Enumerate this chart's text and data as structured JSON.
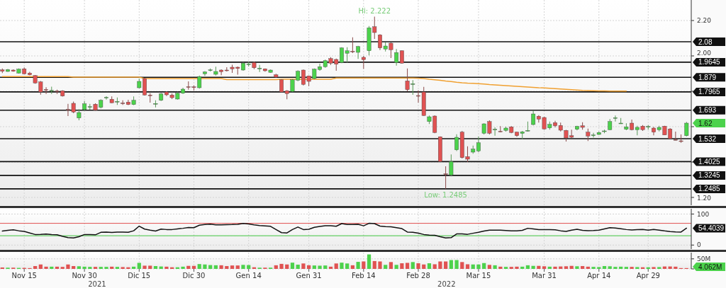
{
  "chart_data": [
    {
      "type": "candlestick",
      "categories": [
        null,
        null,
        null,
        null,
        null,
        null,
        null,
        null,
        null,
        null,
        null,
        null,
        null,
        null,
        null,
        null,
        null,
        null,
        null,
        null,
        null,
        null,
        null,
        null,
        null,
        null,
        null,
        null,
        null,
        null,
        null,
        null,
        null,
        null,
        null,
        null,
        null,
        null,
        null,
        null,
        null,
        null,
        null,
        null,
        null,
        null,
        null,
        null,
        null,
        null,
        null,
        null,
        null,
        null,
        null,
        null,
        null,
        null,
        null,
        null,
        null,
        null,
        null,
        null,
        null,
        null,
        null,
        null,
        null,
        null,
        null,
        null,
        null,
        null,
        null,
        null,
        null,
        null,
        null,
        null,
        null,
        null,
        null,
        null,
        null,
        null,
        null,
        null,
        null,
        null,
        null,
        null,
        null,
        null,
        null,
        null,
        null,
        null,
        null,
        null,
        null,
        null,
        null,
        null,
        null,
        null,
        null,
        null,
        null,
        null,
        null,
        null,
        null,
        null,
        null,
        null,
        null,
        null,
        null,
        null,
        null,
        null,
        null,
        null,
        null,
        null
      ],
      "ohlc": [
        [
          1.921,
          1.929,
          1.903,
          1.913
        ],
        [
          1.912,
          1.926,
          1.91,
          1.923
        ],
        [
          1.92,
          1.924,
          1.911,
          1.913
        ],
        [
          1.903,
          1.929,
          1.9,
          1.925
        ],
        [
          1.927,
          1.935,
          1.896,
          1.899
        ],
        [
          1.903,
          1.91,
          1.89,
          1.893
        ],
        [
          1.889,
          1.892,
          1.843,
          1.847
        ],
        [
          1.853,
          1.858,
          1.781,
          1.796
        ],
        [
          1.81,
          1.823,
          1.785,
          1.808
        ],
        [
          1.803,
          1.826,
          1.785,
          1.805
        ],
        [
          1.802,
          1.809,
          1.785,
          1.8
        ],
        [
          1.803,
          1.806,
          1.77,
          1.773
        ],
        [
          1.698,
          1.729,
          1.66,
          1.696
        ],
        [
          1.732,
          1.742,
          1.676,
          1.683
        ],
        [
          1.649,
          1.699,
          1.636,
          1.68
        ],
        [
          1.696,
          1.745,
          1.69,
          1.729
        ],
        [
          1.711,
          1.729,
          1.696,
          1.713
        ],
        [
          1.727,
          1.732,
          1.69,
          1.693
        ],
        [
          1.709,
          1.755,
          1.703,
          1.749
        ],
        [
          1.764,
          1.772,
          1.753,
          1.766
        ],
        [
          1.755,
          1.771,
          1.733,
          1.735
        ],
        [
          1.741,
          1.765,
          1.723,
          1.743
        ],
        [
          1.734,
          1.749,
          1.723,
          1.732
        ],
        [
          1.739,
          1.752,
          1.722,
          1.725
        ],
        [
          1.725,
          1.771,
          1.722,
          1.749
        ],
        [
          1.82,
          1.872,
          1.816,
          1.856
        ],
        [
          1.872,
          1.876,
          1.776,
          1.779
        ],
        [
          1.779,
          1.789,
          1.736,
          1.778
        ],
        [
          1.729,
          1.749,
          1.709,
          1.731
        ],
        [
          1.749,
          1.791,
          1.745,
          1.785
        ],
        [
          1.796,
          1.8,
          1.773,
          1.78
        ],
        [
          1.779,
          1.788,
          1.756,
          1.764
        ],
        [
          1.756,
          1.797,
          1.753,
          1.789
        ],
        [
          1.789,
          1.82,
          1.785,
          1.812
        ],
        [
          1.826,
          1.856,
          1.809,
          1.824
        ],
        [
          1.825,
          1.833,
          1.805,
          1.824
        ],
        [
          1.82,
          1.889,
          1.815,
          1.883
        ],
        [
          1.899,
          1.914,
          1.887,
          1.909
        ],
        [
          1.919,
          1.929,
          1.912,
          1.921
        ],
        [
          1.896,
          1.939,
          1.889,
          1.912
        ],
        [
          1.92,
          1.924,
          1.891,
          1.911
        ],
        [
          1.92,
          1.936,
          1.912,
          1.919
        ],
        [
          1.936,
          1.95,
          1.904,
          1.927
        ],
        [
          1.936,
          1.94,
          1.894,
          1.929
        ],
        [
          1.92,
          1.965,
          1.916,
          1.959
        ],
        [
          1.953,
          1.967,
          1.94,
          1.955
        ],
        [
          1.963,
          1.968,
          1.925,
          1.933
        ],
        [
          1.929,
          1.949,
          1.909,
          1.931
        ],
        [
          1.927,
          1.929,
          1.911,
          1.916
        ],
        [
          1.907,
          1.923,
          1.905,
          1.92
        ],
        [
          1.893,
          1.899,
          1.876,
          1.88
        ],
        [
          1.865,
          1.867,
          1.792,
          1.796
        ],
        [
          1.803,
          1.807,
          1.755,
          1.787
        ],
        [
          1.799,
          1.869,
          1.796,
          1.865
        ],
        [
          1.863,
          1.919,
          1.857,
          1.913
        ],
        [
          1.92,
          1.923,
          1.833,
          1.839
        ],
        [
          1.887,
          1.889,
          1.829,
          1.856
        ],
        [
          1.872,
          1.929,
          1.868,
          1.925
        ],
        [
          1.923,
          1.956,
          1.916,
          1.939
        ],
        [
          1.939,
          1.979,
          1.933,
          1.973
        ],
        [
          1.985,
          1.993,
          1.949,
          1.959
        ],
        [
          1.98,
          1.985,
          1.916,
          1.953
        ],
        [
          1.963,
          2.049,
          1.959,
          2.045
        ],
        [
          2.015,
          2.049,
          1.963,
          2.029
        ],
        [
          2.027,
          2.105,
          2.016,
          2.026
        ],
        [
          2.02,
          2.057,
          1.983,
          2.053
        ],
        [
          1.992,
          2.0,
          1.927,
          1.979
        ],
        [
          2.029,
          2.169,
          2.003,
          2.159
        ],
        [
          2.165,
          2.222,
          2.096,
          2.132
        ],
        [
          2.119,
          2.123,
          2.033,
          2.045
        ],
        [
          2.039,
          2.076,
          2.025,
          2.056
        ],
        [
          2.072,
          2.076,
          1.988,
          2.035
        ],
        [
          1.963,
          2.039,
          1.945,
          2.019
        ],
        [
          2.029,
          2.032,
          1.956,
          1.959
        ],
        [
          1.859,
          1.929,
          1.799,
          1.809
        ],
        [
          1.841,
          1.863,
          1.78,
          1.843
        ],
        [
          1.776,
          1.805,
          1.736,
          1.775
        ],
        [
          1.796,
          1.825,
          1.661,
          1.663
        ],
        [
          1.629,
          1.663,
          1.615,
          1.656
        ],
        [
          1.66,
          1.664,
          1.563,
          1.567
        ],
        [
          1.543,
          1.545,
          1.4,
          1.403
        ],
        [
          1.334,
          1.376,
          1.2485,
          1.333
        ],
        [
          1.327,
          1.443,
          1.319,
          1.403
        ],
        [
          1.469,
          1.557,
          1.462,
          1.54
        ],
        [
          1.569,
          1.576,
          1.42,
          1.425
        ],
        [
          1.431,
          1.489,
          1.4,
          1.416
        ],
        [
          1.456,
          1.493,
          1.447,
          1.473
        ],
        [
          1.463,
          1.544,
          1.455,
          1.509
        ],
        [
          1.563,
          1.619,
          1.556,
          1.616
        ],
        [
          1.629,
          1.636,
          1.556,
          1.563
        ],
        [
          1.583,
          1.596,
          1.549,
          1.585
        ],
        [
          1.574,
          1.603,
          1.569,
          1.573
        ],
        [
          1.579,
          1.6,
          1.572,
          1.592
        ],
        [
          1.599,
          1.603,
          1.563,
          1.567
        ],
        [
          1.569,
          1.572,
          1.543,
          1.549
        ],
        [
          1.562,
          1.576,
          1.529,
          1.571
        ],
        [
          1.578,
          1.629,
          1.572,
          1.579
        ],
        [
          1.612,
          1.692,
          1.607,
          1.672
        ],
        [
          1.659,
          1.665,
          1.623,
          1.643
        ],
        [
          1.652,
          1.656,
          1.583,
          1.587
        ],
        [
          1.593,
          1.629,
          1.583,
          1.613
        ],
        [
          1.623,
          1.633,
          1.596,
          1.605
        ],
        [
          1.607,
          1.623,
          1.573,
          1.58
        ],
        [
          1.579,
          1.582,
          1.516,
          1.536
        ],
        [
          1.549,
          1.583,
          1.533,
          1.54
        ],
        [
          1.585,
          1.605,
          1.579,
          1.602
        ],
        [
          1.605,
          1.625,
          1.583,
          1.596
        ],
        [
          1.569,
          1.589,
          1.519,
          1.547
        ],
        [
          1.552,
          1.565,
          1.539,
          1.553
        ],
        [
          1.556,
          1.573,
          1.553,
          1.567
        ],
        [
          1.574,
          1.583,
          1.563,
          1.576
        ],
        [
          1.583,
          1.643,
          1.58,
          1.629
        ],
        [
          1.649,
          1.663,
          1.629,
          1.651
        ],
        [
          1.618,
          1.649,
          1.616,
          1.62
        ],
        [
          1.585,
          1.619,
          1.58,
          1.599
        ],
        [
          1.62,
          1.64,
          1.579,
          1.583
        ],
        [
          1.583,
          1.605,
          1.551,
          1.596
        ],
        [
          1.603,
          1.609,
          1.576,
          1.583
        ],
        [
          1.599,
          1.609,
          1.583,
          1.601
        ],
        [
          1.592,
          1.599,
          1.551,
          1.569
        ],
        [
          1.583,
          1.605,
          1.573,
          1.596
        ],
        [
          1.603,
          1.605,
          1.553,
          1.553
        ],
        [
          1.587,
          1.592,
          1.531,
          1.532
        ],
        [
          1.527,
          1.572,
          1.523,
          1.526
        ],
        [
          1.52,
          1.556,
          1.509,
          1.519
        ],
        [
          1.549,
          1.627,
          1.545,
          1.62
        ]
      ],
      "series": [
        {
          "type": "line",
          "color": "#f0a030",
          "values": [
            1.883,
            1.883,
            1.883,
            1.883,
            1.883,
            1.883,
            1.883,
            1.883,
            1.883,
            1.883,
            1.883,
            1.883,
            1.883,
            1.88,
            1.88,
            1.88,
            1.88,
            1.88,
            1.88,
            1.88,
            1.88,
            1.88,
            1.88,
            1.88,
            1.88,
            1.88,
            1.872,
            1.872,
            1.872,
            1.872,
            1.872,
            1.872,
            1.872,
            1.872,
            1.872,
            1.872,
            1.872,
            1.872,
            1.872,
            1.872,
            1.872,
            1.866,
            1.866,
            1.866,
            1.866,
            1.866,
            1.866,
            1.866,
            1.866,
            1.866,
            1.866,
            1.868,
            1.868,
            1.868,
            1.868,
            1.868,
            1.868,
            1.868,
            1.868,
            1.868,
            1.868,
            1.875,
            1.875,
            1.875,
            1.875,
            1.875,
            1.875,
            1.875,
            1.875,
            1.875,
            1.875,
            1.875,
            1.875,
            1.875,
            1.875,
            1.875,
            1.874,
            1.872,
            1.868,
            1.865,
            1.862,
            1.858,
            1.855,
            1.851,
            1.848,
            1.846,
            1.845,
            1.843,
            1.841,
            1.838,
            1.836,
            1.834,
            1.832,
            1.83,
            1.828,
            1.826,
            1.824,
            1.822,
            1.82,
            1.819,
            1.817,
            1.815,
            1.813,
            1.811,
            1.809,
            1.807,
            1.805,
            1.804,
            1.803,
            1.802,
            1.802,
            1.801,
            1.801,
            1.801,
            1.801,
            null,
            null,
            null,
            null,
            null,
            null,
            null,
            null,
            null,
            null,
            null
          ]
        }
      ],
      "ylim": [
        1.156,
        2.316
      ],
      "yticks": [
        {
          "value": 2.2,
          "label": "2.20"
        },
        {
          "value": 2.0,
          "label": "2.00"
        },
        {
          "value": 1.8,
          "label": null
        },
        {
          "value": 1.6,
          "label": null
        },
        {
          "value": 1.4,
          "label": null
        },
        {
          "value": 1.2,
          "label": "1.20"
        }
      ],
      "ref_lines": [
        {
          "axis": "y",
          "value": 2.08,
          "label": "2.08"
        },
        {
          "axis": "y",
          "value": 1.9645,
          "label": "1.9645"
        },
        {
          "axis": "y",
          "value": 1.879,
          "label": "1.879"
        },
        {
          "axis": "y",
          "value": 1.7965,
          "label": "1.7965"
        },
        {
          "axis": "y",
          "value": 1.693,
          "label": "1.693"
        },
        {
          "axis": "y",
          "value": 1.532,
          "label": "1.532"
        },
        {
          "axis": "y",
          "value": 1.4025,
          "label": "1.4025"
        },
        {
          "axis": "y",
          "value": 1.3245,
          "label": "1.3245"
        },
        {
          "axis": "y",
          "value": 1.2485,
          "label": "1.2485"
        }
      ],
      "annotations": [
        {
          "text": "Hi: 2.222",
          "y": 2.222
        },
        {
          "text": "Low: 1.2485",
          "y": 1.2485
        },
        "1.62"
      ],
      "grid": true,
      "tick_labels": "y"
    },
    {
      "type": "line",
      "categories": [
        null,
        null,
        null,
        null,
        null,
        null,
        null,
        null,
        null,
        null,
        null,
        null,
        null,
        null,
        null,
        null,
        null,
        null,
        null,
        null,
        null,
        null,
        null,
        null,
        null,
        null,
        null,
        null,
        null,
        null,
        null,
        null,
        null,
        null,
        null,
        null,
        null,
        null,
        null,
        null,
        null,
        null,
        null,
        null,
        null,
        null,
        null,
        null,
        null,
        null,
        null,
        null,
        null,
        null,
        null,
        null,
        null,
        null,
        null,
        null,
        null,
        null,
        null,
        null,
        null,
        null,
        null,
        null,
        null,
        null,
        null,
        null,
        null,
        null,
        null,
        null,
        null,
        null,
        null,
        null,
        null,
        null,
        null,
        null,
        null,
        null,
        null,
        null,
        null,
        null,
        null,
        null,
        null,
        null,
        null,
        null,
        null,
        null,
        null,
        null,
        null,
        null,
        null,
        null,
        null,
        null,
        null,
        null,
        null,
        null,
        null,
        null,
        null,
        null,
        null,
        null,
        null,
        null,
        null,
        null,
        null,
        null,
        null,
        null,
        null,
        null
      ],
      "series": [
        {
          "color": "#111111",
          "values": [
            45,
            47.5,
            49,
            46,
            44,
            39,
            34,
            34.5,
            35.4,
            34,
            33,
            28,
            24,
            23,
            27,
            34,
            33.5,
            33,
            41,
            42,
            40.5,
            42,
            41.5,
            41,
            46,
            61,
            51.5,
            48,
            45,
            51.5,
            50,
            50,
            52,
            54,
            56.5,
            56,
            64,
            66,
            67.5,
            65,
            65,
            65.5,
            66,
            67,
            69.5,
            68,
            65,
            63,
            61.5,
            60.3,
            50,
            40,
            39,
            50,
            58,
            50,
            50.8,
            57,
            60,
            62,
            62,
            60.5,
            69,
            66.5,
            66.5,
            67,
            62,
            70,
            69.2,
            61,
            59.5,
            59,
            56,
            53,
            42,
            41,
            38.5,
            34,
            32,
            31.7,
            27,
            23,
            24,
            36,
            36,
            34.6,
            38,
            41,
            45,
            48,
            48,
            48,
            47,
            45.5,
            46,
            47.5,
            54,
            52,
            49.5,
            49.5,
            50,
            49,
            46,
            44.2,
            48,
            50.8,
            47.5,
            46.5,
            47,
            48,
            52,
            56,
            55,
            52.5,
            50,
            48.6,
            49.5,
            50.5,
            48,
            50.5,
            48,
            45.5,
            43.5,
            42.5,
            42,
            54.4039
          ]
        }
      ],
      "ylim": [
        -13,
        117
      ],
      "yticks": [
        0,
        100
      ],
      "ref_lines": [
        {
          "axis": "y",
          "value": 70,
          "color": "#e05050"
        },
        {
          "axis": "y",
          "value": 30,
          "color": "#3ec43e"
        }
      ],
      "annotations": [
        "54.4039"
      ],
      "grid": true,
      "tick_labels": "y"
    },
    {
      "type": "bar",
      "categories": [
        null,
        null,
        null,
        null,
        "Nov 15",
        null,
        null,
        null,
        null,
        null,
        null,
        null,
        null,
        null,
        null,
        "Nov 30",
        null,
        null,
        null,
        null,
        null,
        null,
        null,
        null,
        null,
        "Dic 15",
        null,
        null,
        null,
        null,
        null,
        null,
        null,
        null,
        null,
        "Dic 30",
        null,
        null,
        null,
        null,
        null,
        null,
        null,
        null,
        null,
        "Gen 14",
        null,
        null,
        null,
        null,
        null,
        null,
        null,
        null,
        null,
        null,
        "Gen 31",
        null,
        null,
        null,
        null,
        null,
        null,
        null,
        null,
        null,
        "Feb 14",
        null,
        null,
        null,
        null,
        null,
        null,
        null,
        null,
        null,
        "Feb 28",
        null,
        null,
        null,
        null,
        null,
        null,
        null,
        null,
        null,
        null,
        "Mar 15",
        null,
        null,
        null,
        null,
        null,
        null,
        null,
        null,
        null,
        null,
        null,
        "Mar 31",
        null,
        null,
        null,
        null,
        null,
        null,
        null,
        null,
        null,
        "Apr 14",
        null,
        null,
        null,
        null,
        null,
        null,
        null,
        null,
        "Apr 29",
        null,
        null,
        null,
        null,
        null,
        null,
        null
      ],
      "values": [
        7,
        6,
        6,
        5,
        5,
        4,
        14,
        22,
        11,
        11,
        11,
        10,
        22,
        14,
        13,
        11,
        10,
        10,
        10,
        10,
        11,
        10,
        9,
        8,
        11,
        30,
        16,
        16,
        14,
        12,
        11,
        8,
        8,
        11,
        15,
        15,
        24,
        22,
        19,
        18,
        18,
        14,
        17,
        17,
        20,
        19,
        8,
        6,
        6,
        6,
        18,
        25,
        22,
        31,
        21,
        27,
        18,
        17,
        16,
        17,
        11,
        27,
        31,
        27,
        18,
        35,
        37,
        72,
        39,
        37,
        20,
        34,
        20,
        28,
        30,
        34,
        28,
        22,
        28,
        23,
        37,
        37,
        44,
        44,
        34,
        23,
        22,
        22,
        29,
        20,
        18,
        11,
        10,
        10,
        11,
        11,
        18,
        15,
        15,
        13,
        11,
        11,
        12,
        13,
        15,
        13,
        14,
        11,
        10,
        9,
        14,
        13,
        10,
        11,
        10,
        10,
        9,
        8,
        8,
        9,
        9,
        12,
        12,
        11,
        4,
        4
      ],
      "colors": [
        "#e05252",
        "#4cd24c",
        "#e05252",
        "#4cd24c",
        "#e05252",
        "#e05252",
        "#e05252",
        "#e05252",
        "#e05252",
        "#4cd24c",
        "#e05252",
        "#e05252",
        "#e05252",
        "#e05252",
        "#4cd24c",
        "#4cd24c",
        "#4cd24c",
        "#e05252",
        "#4cd24c",
        "#4cd24c",
        "#e05252",
        "#4cd24c",
        "#e05252",
        "#e05252",
        "#4cd24c",
        "#4cd24c",
        "#e05252",
        "#e05252",
        "#4cd24c",
        "#4cd24c",
        "#e05252",
        "#e05252",
        "#4cd24c",
        "#4cd24c",
        "#e05252",
        "#e05252",
        "#4cd24c",
        "#4cd24c",
        "#4cd24c",
        "#4cd24c",
        "#e05252",
        "#e05252",
        "#e05252",
        "#e05252",
        "#4cd24c",
        "#4cd24c",
        "#e05252",
        "#4cd24c",
        "#e05252",
        "#4cd24c",
        "#e05252",
        "#e05252",
        "#e05252",
        "#4cd24c",
        "#4cd24c",
        "#e05252",
        "#e05252",
        "#4cd24c",
        "#4cd24c",
        "#4cd24c",
        "#e05252",
        "#e05252",
        "#4cd24c",
        "#4cd24c",
        "#e05252",
        "#4cd24c",
        "#e05252",
        "#4cd24c",
        "#e05252",
        "#e05252",
        "#4cd24c",
        "#e05252",
        "#4cd24c",
        "#e05252",
        "#e05252",
        "#4cd24c",
        "#e05252",
        "#e05252",
        "#4cd24c",
        "#e05252",
        "#e05252",
        "#e05252",
        "#4cd24c",
        "#4cd24c",
        "#e05252",
        "#e05252",
        "#4cd24c",
        "#4cd24c",
        "#4cd24c",
        "#e05252",
        "#4cd24c",
        "#e05252",
        "#4cd24c",
        "#e05252",
        "#e05252",
        "#4cd24c",
        "#4cd24c",
        "#4cd24c",
        "#e05252",
        "#e05252",
        "#4cd24c",
        "#e05252",
        "#e05252",
        "#e05252",
        "#e05252",
        "#4cd24c",
        "#e05252",
        "#e05252",
        "#4cd24c",
        "#4cd24c",
        "#4cd24c",
        "#4cd24c",
        "#4cd24c",
        "#4cd24c",
        "#4cd24c",
        "#e05252",
        "#4cd24c",
        "#e05252",
        "#4cd24c",
        "#e05252",
        "#4cd24c",
        "#e05252",
        "#e05252",
        "#e05252",
        "#e05252",
        "#e05252"
      ],
      "ylim": [
        0,
        81
      ],
      "yticks": [
        {
          "value": 0,
          "label": null
        },
        {
          "value": 50,
          "label": "50M"
        }
      ],
      "annotations": [
        "2021",
        "2022",
        "4.062M"
      ],
      "grid": true
    }
  ]
}
